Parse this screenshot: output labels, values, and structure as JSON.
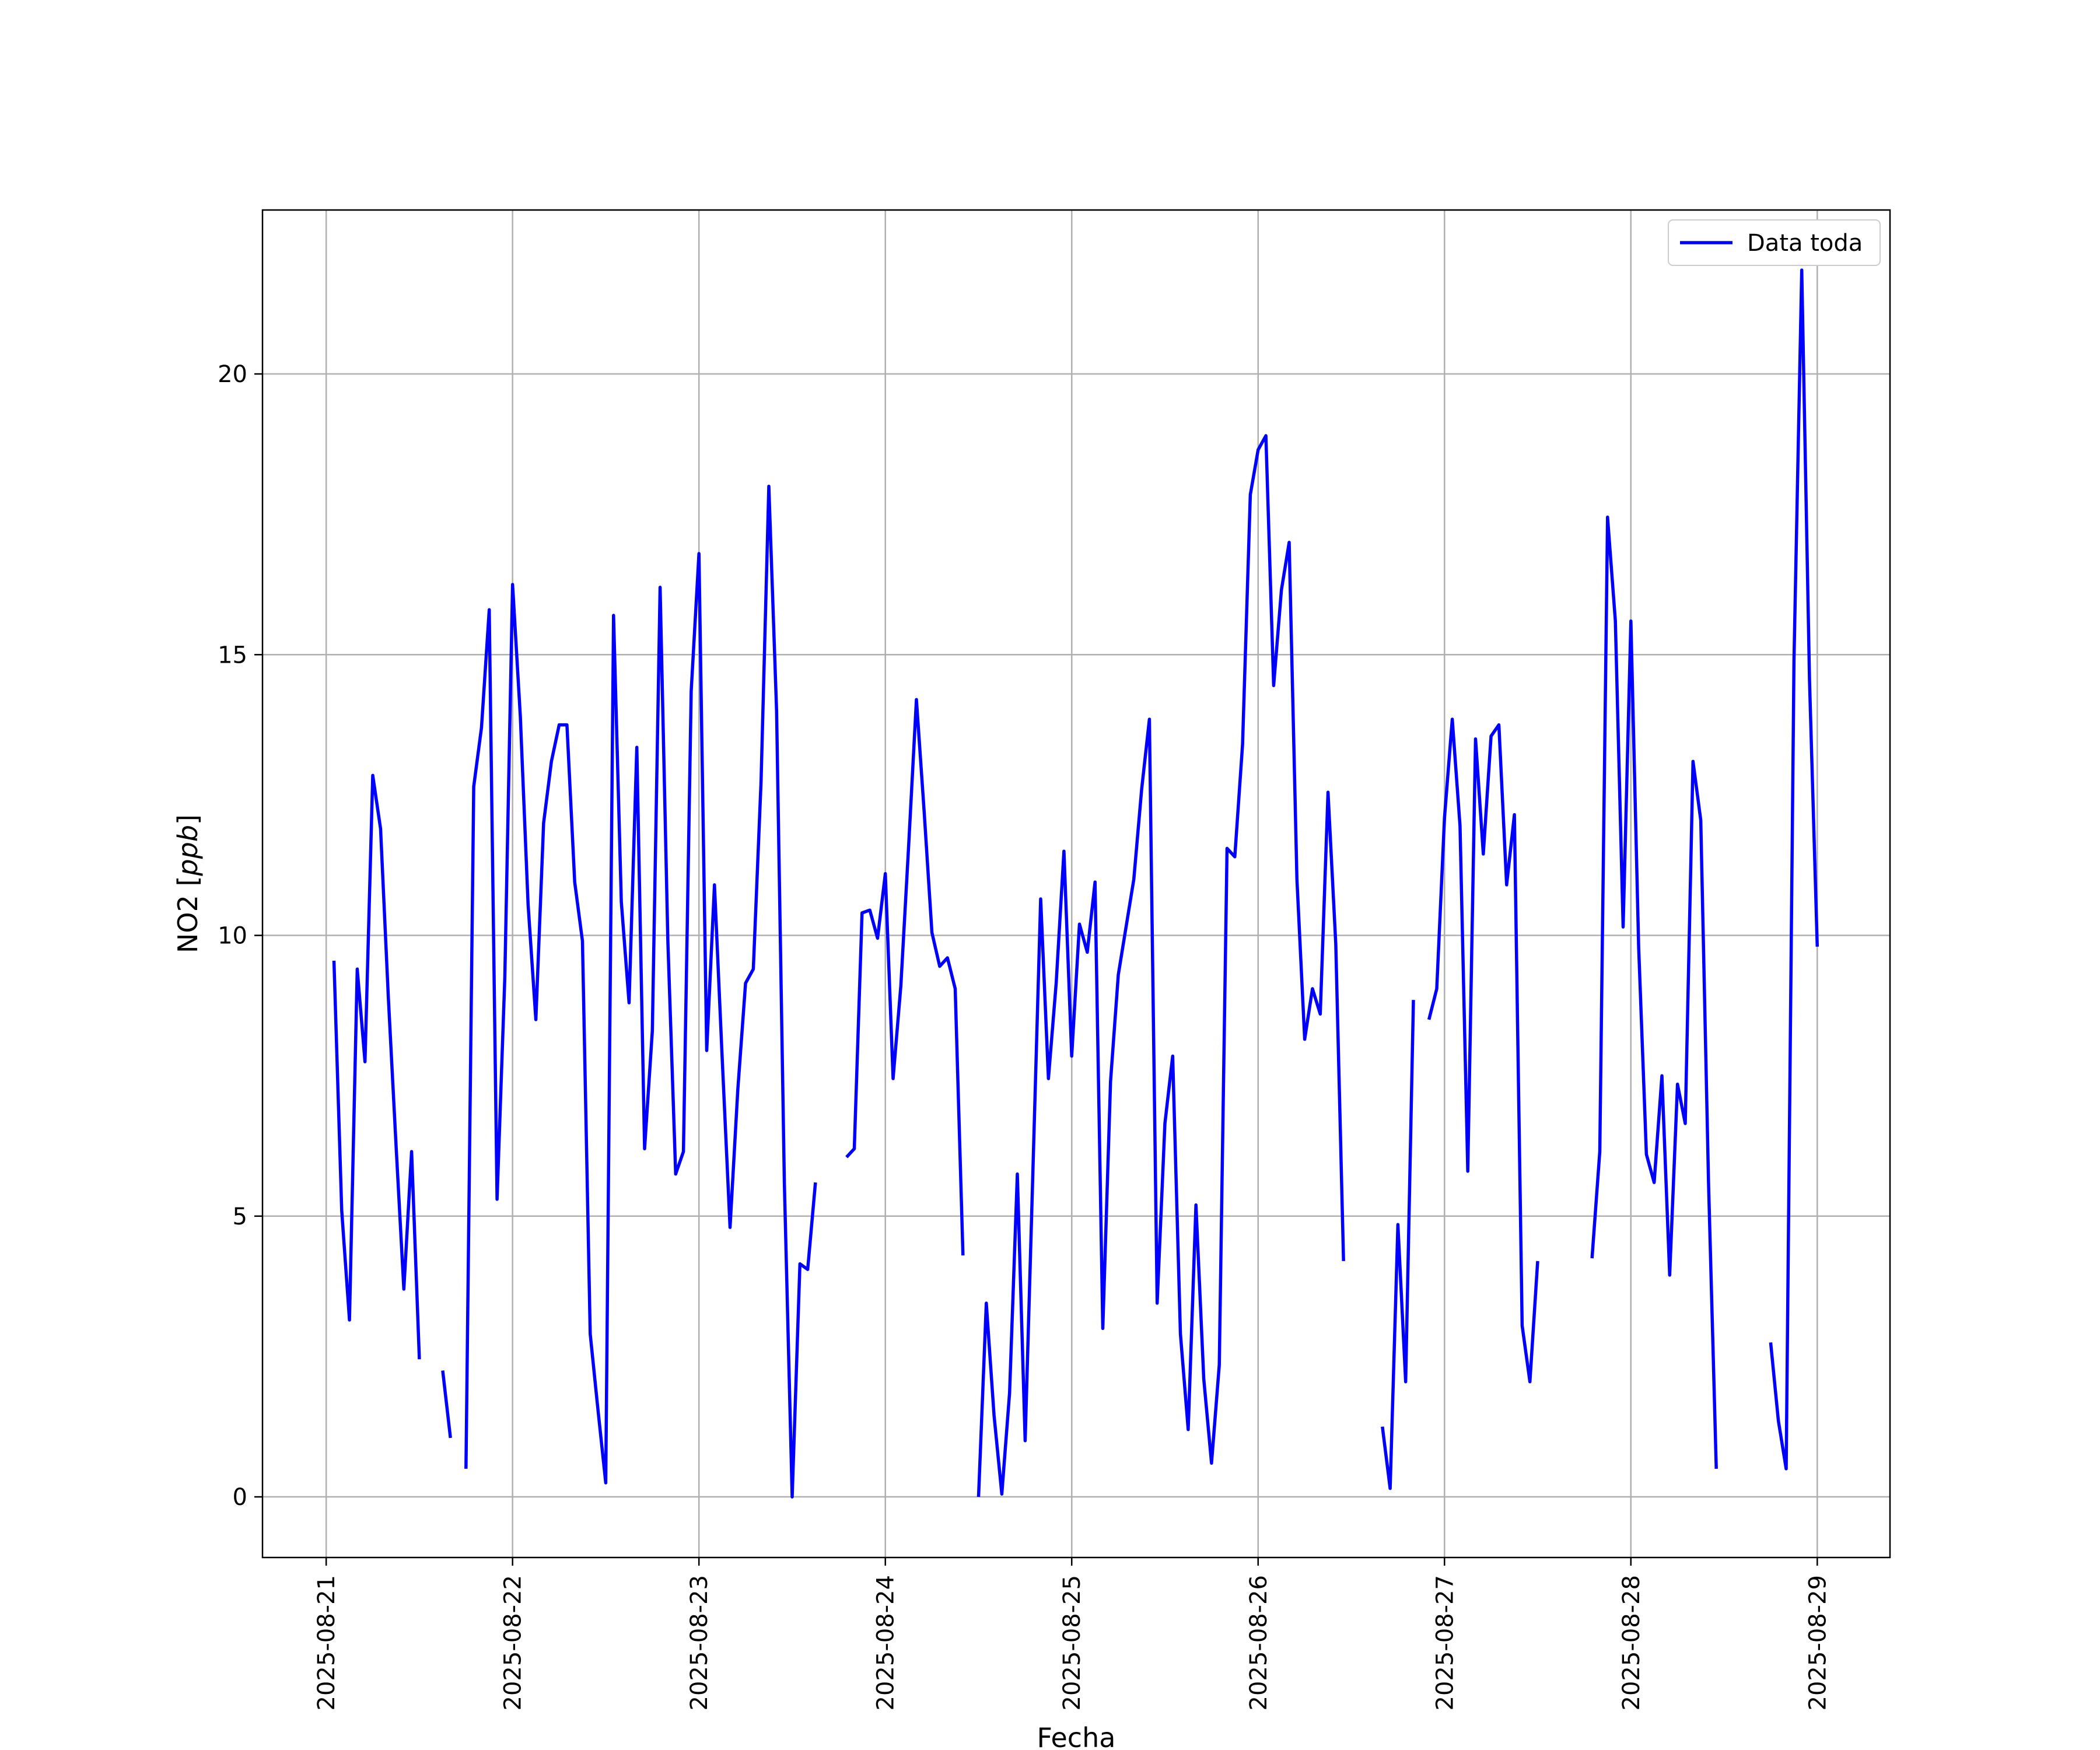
{
  "chart_data": {
    "type": "line",
    "xlabel": "Fecha",
    "ylabel": "NO2 [ppb]",
    "ylabel_main": "NO2 [",
    "ylabel_unit": "ppb",
    "ylabel_close": "]",
    "ylim": [
      -1.08,
      22.92
    ],
    "xlim": [
      "2025-08-20 15:48",
      "2025-08-29 09:22"
    ],
    "xticks": [
      "2025-08-21",
      "2025-08-22",
      "2025-08-23",
      "2025-08-24",
      "2025-08-25",
      "2025-08-26",
      "2025-08-27",
      "2025-08-28",
      "2025-08-29"
    ],
    "yticks": [
      0,
      5,
      10,
      15,
      20
    ],
    "grid": true,
    "legend": {
      "position": "upper right",
      "entries": [
        "Data toda"
      ]
    },
    "colors": {
      "series": "#0000ff",
      "grid": "#b0b0b0",
      "frame": "#000000"
    },
    "series": [
      {
        "name": "Data toda",
        "color": "#0000ff",
        "segments": [
          [
            [
              "2025-08-21 01:00",
              9.55
            ],
            [
              "2025-08-21 02:00",
              5.1
            ],
            [
              "2025-08-21 03:00",
              3.15
            ],
            [
              "2025-08-21 04:00",
              9.4
            ],
            [
              "2025-08-21 05:00",
              7.75
            ],
            [
              "2025-08-21 06:00",
              12.85
            ],
            [
              "2025-08-21 07:00",
              11.9
            ],
            [
              "2025-08-21 08:00",
              8.9
            ],
            [
              "2025-08-21 09:00",
              6.25
            ],
            [
              "2025-08-21 10:00",
              3.7
            ],
            [
              "2025-08-21 11:00",
              6.15
            ],
            [
              "2025-08-21 12:00",
              2.45
            ]
          ],
          [
            [
              "2025-08-21 15:00",
              2.25
            ],
            [
              "2025-08-21 16:00",
              1.05
            ]
          ],
          [
            [
              "2025-08-21 18:00",
              0.5
            ],
            [
              "2025-08-21 19:00",
              12.65
            ],
            [
              "2025-08-21 20:00",
              13.7
            ],
            [
              "2025-08-21 21:00",
              15.8
            ],
            [
              "2025-08-21 22:00",
              5.3
            ],
            [
              "2025-08-21 23:00",
              9.25
            ],
            [
              "2025-08-22 00:00",
              16.25
            ],
            [
              "2025-08-22 01:00",
              13.9
            ],
            [
              "2025-08-22 02:00",
              10.55
            ],
            [
              "2025-08-22 03:00",
              8.5
            ],
            [
              "2025-08-22 04:00",
              12.0
            ],
            [
              "2025-08-22 05:00",
              13.1
            ],
            [
              "2025-08-22 06:00",
              13.75
            ],
            [
              "2025-08-22 07:00",
              13.75
            ],
            [
              "2025-08-22 08:00",
              10.95
            ],
            [
              "2025-08-22 09:00",
              9.9
            ],
            [
              "2025-08-22 10:00",
              2.9
            ],
            [
              "2025-08-22 11:00",
              1.55
            ],
            [
              "2025-08-22 12:00",
              0.25
            ],
            [
              "2025-08-22 13:00",
              15.7
            ],
            [
              "2025-08-22 14:00",
              10.6
            ],
            [
              "2025-08-22 15:00",
              8.8
            ],
            [
              "2025-08-22 16:00",
              13.35
            ],
            [
              "2025-08-22 17:00",
              6.2
            ],
            [
              "2025-08-22 18:00",
              8.3
            ],
            [
              "2025-08-22 19:00",
              16.2
            ],
            [
              "2025-08-22 20:00",
              9.9
            ],
            [
              "2025-08-22 21:00",
              5.75
            ],
            [
              "2025-08-22 22:00",
              6.15
            ],
            [
              "2025-08-22 23:00",
              14.35
            ],
            [
              "2025-08-23 00:00",
              16.8
            ],
            [
              "2025-08-23 01:00",
              7.95
            ],
            [
              "2025-08-23 02:00",
              10.9
            ],
            [
              "2025-08-23 03:00",
              7.8
            ],
            [
              "2025-08-23 04:00",
              4.8
            ],
            [
              "2025-08-23 05:00",
              7.25
            ],
            [
              "2025-08-23 06:00",
              9.15
            ],
            [
              "2025-08-23 07:00",
              9.4
            ],
            [
              "2025-08-23 08:00",
              12.75
            ],
            [
              "2025-08-23 09:00",
              18.0
            ],
            [
              "2025-08-23 10:00",
              14.0
            ],
            [
              "2025-08-23 11:00",
              5.6
            ],
            [
              "2025-08-23 12:00",
              0.0
            ],
            [
              "2025-08-23 13:00",
              4.15
            ],
            [
              "2025-08-23 14:00",
              4.05
            ],
            [
              "2025-08-23 15:00",
              5.6
            ]
          ],
          [
            [
              "2025-08-23 19:00",
              6.05
            ],
            [
              "2025-08-23 20:00",
              6.2
            ],
            [
              "2025-08-23 21:00",
              10.4
            ],
            [
              "2025-08-23 22:00",
              10.45
            ],
            [
              "2025-08-23 23:00",
              9.95
            ],
            [
              "2025-08-24 00:00",
              11.1
            ],
            [
              "2025-08-24 01:00",
              7.45
            ],
            [
              "2025-08-24 02:00",
              9.1
            ],
            [
              "2025-08-24 03:00",
              11.6
            ],
            [
              "2025-08-24 04:00",
              14.2
            ],
            [
              "2025-08-24 05:00",
              12.2
            ],
            [
              "2025-08-24 06:00",
              10.05
            ],
            [
              "2025-08-24 07:00",
              9.45
            ],
            [
              "2025-08-24 08:00",
              9.6
            ],
            [
              "2025-08-24 09:00",
              9.05
            ],
            [
              "2025-08-24 10:00",
              4.3
            ]
          ],
          [
            [
              "2025-08-24 12:00",
              0.0
            ],
            [
              "2025-08-24 13:00",
              3.45
            ],
            [
              "2025-08-24 14:00",
              1.45
            ],
            [
              "2025-08-24 15:00",
              0.05
            ],
            [
              "2025-08-24 16:00",
              1.85
            ],
            [
              "2025-08-24 17:00",
              5.75
            ],
            [
              "2025-08-24 18:00",
              1.0
            ],
            [
              "2025-08-24 19:00",
              5.8
            ],
            [
              "2025-08-24 20:00",
              10.65
            ],
            [
              "2025-08-24 21:00",
              7.45
            ],
            [
              "2025-08-24 22:00",
              9.15
            ],
            [
              "2025-08-24 23:00",
              11.5
            ],
            [
              "2025-08-25 00:00",
              7.85
            ],
            [
              "2025-08-25 01:00",
              10.2
            ],
            [
              "2025-08-25 02:00",
              9.7
            ],
            [
              "2025-08-25 03:00",
              10.95
            ],
            [
              "2025-08-25 04:00",
              3.0
            ],
            [
              "2025-08-25 05:00",
              7.4
            ],
            [
              "2025-08-25 06:00",
              9.3
            ],
            [
              "2025-08-25 07:00",
              10.15
            ],
            [
              "2025-08-25 08:00",
              11.0
            ],
            [
              "2025-08-25 09:00",
              12.6
            ],
            [
              "2025-08-25 10:00",
              13.85
            ],
            [
              "2025-08-25 11:00",
              3.45
            ],
            [
              "2025-08-25 12:00",
              6.65
            ],
            [
              "2025-08-25 13:00",
              7.85
            ],
            [
              "2025-08-25 14:00",
              2.9
            ],
            [
              "2025-08-25 15:00",
              1.2
            ],
            [
              "2025-08-25 16:00",
              5.2
            ],
            [
              "2025-08-25 17:00",
              2.1
            ],
            [
              "2025-08-25 18:00",
              0.6
            ],
            [
              "2025-08-25 19:00",
              2.35
            ],
            [
              "2025-08-25 20:00",
              11.55
            ],
            [
              "2025-08-25 21:00",
              11.4
            ],
            [
              "2025-08-25 22:00",
              13.4
            ],
            [
              "2025-08-25 23:00",
              17.85
            ],
            [
              "2025-08-26 00:00",
              18.65
            ],
            [
              "2025-08-26 01:00",
              18.9
            ],
            [
              "2025-08-26 02:00",
              14.45
            ],
            [
              "2025-08-26 03:00",
              16.15
            ],
            [
              "2025-08-26 04:00",
              17.0
            ],
            [
              "2025-08-26 05:00",
              11.0
            ],
            [
              "2025-08-26 06:00",
              8.15
            ],
            [
              "2025-08-26 07:00",
              9.05
            ],
            [
              "2025-08-26 08:00",
              8.6
            ],
            [
              "2025-08-26 09:00",
              12.55
            ],
            [
              "2025-08-26 10:00",
              9.85
            ],
            [
              "2025-08-26 11:00",
              4.2
            ]
          ],
          [
            [
              "2025-08-26 16:00",
              1.25
            ],
            [
              "2025-08-26 17:00",
              0.15
            ],
            [
              "2025-08-26 18:00",
              4.85
            ],
            [
              "2025-08-26 19:00",
              2.05
            ],
            [
              "2025-08-26 20:00",
              8.85
            ]
          ],
          [
            [
              "2025-08-26 22:00",
              8.5
            ],
            [
              "2025-08-26 23:00",
              9.05
            ],
            [
              "2025-08-27 00:00",
              12.1
            ],
            [
              "2025-08-27 01:00",
              13.85
            ],
            [
              "2025-08-27 02:00",
              11.95
            ],
            [
              "2025-08-27 03:00",
              5.8
            ],
            [
              "2025-08-27 04:00",
              13.5
            ],
            [
              "2025-08-27 05:00",
              11.45
            ],
            [
              "2025-08-27 06:00",
              13.55
            ],
            [
              "2025-08-27 07:00",
              13.75
            ],
            [
              "2025-08-27 08:00",
              10.9
            ],
            [
              "2025-08-27 09:00",
              12.15
            ],
            [
              "2025-08-27 10:00",
              3.05
            ],
            [
              "2025-08-27 11:00",
              2.05
            ],
            [
              "2025-08-27 12:00",
              4.2
            ]
          ],
          [
            [
              "2025-08-27 19:00",
              4.25
            ],
            [
              "2025-08-27 20:00",
              6.15
            ],
            [
              "2025-08-27 21:00",
              17.45
            ],
            [
              "2025-08-27 22:00",
              15.6
            ],
            [
              "2025-08-27 23:00",
              10.15
            ],
            [
              "2025-08-28 00:00",
              15.6
            ],
            [
              "2025-08-28 01:00",
              9.8
            ],
            [
              "2025-08-28 02:00",
              6.1
            ],
            [
              "2025-08-28 03:00",
              5.6
            ],
            [
              "2025-08-28 04:00",
              7.5
            ],
            [
              "2025-08-28 05:00",
              3.95
            ],
            [
              "2025-08-28 06:00",
              7.35
            ],
            [
              "2025-08-28 07:00",
              6.65
            ],
            [
              "2025-08-28 08:00",
              13.1
            ],
            [
              "2025-08-28 09:00",
              12.05
            ],
            [
              "2025-08-28 10:00",
              5.6
            ],
            [
              "2025-08-28 11:00",
              0.5
            ]
          ],
          [
            [
              "2025-08-28 18:00",
              2.75
            ],
            [
              "2025-08-28 19:00",
              1.35
            ],
            [
              "2025-08-28 20:00",
              0.5
            ],
            [
              "2025-08-28 21:00",
              14.9
            ],
            [
              "2025-08-28 22:00",
              21.85
            ],
            [
              "2025-08-28 23:00",
              14.55
            ],
            [
              "2025-08-29 00:00",
              9.8
            ]
          ]
        ]
      }
    ]
  }
}
